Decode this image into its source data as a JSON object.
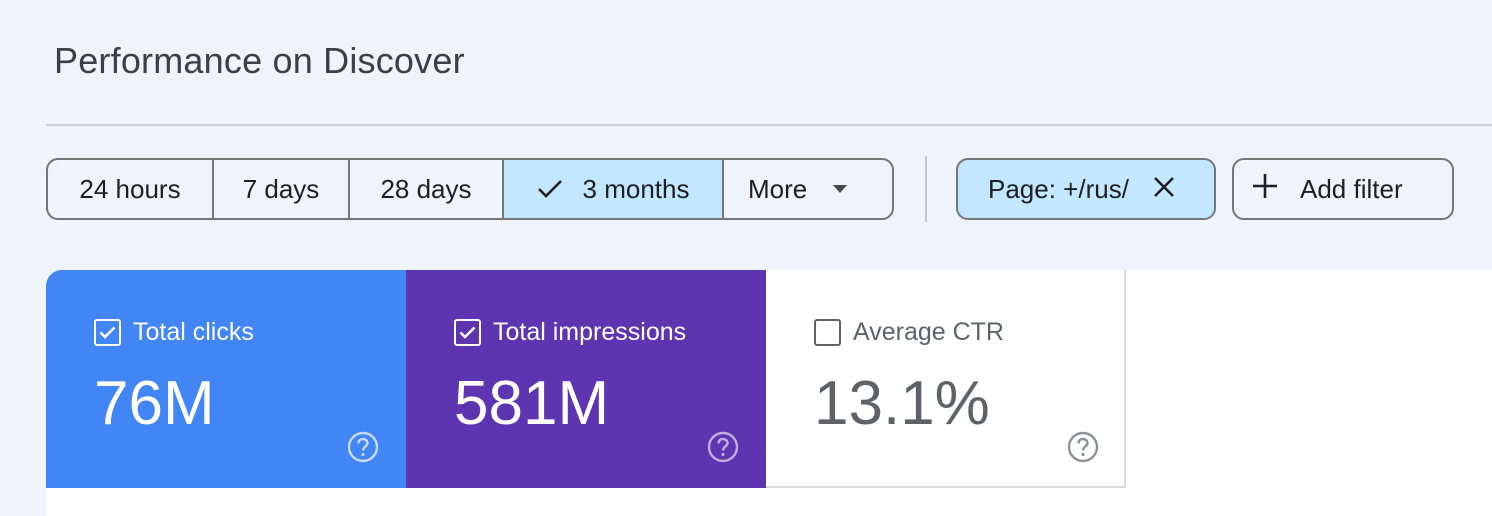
{
  "page": {
    "title": "Performance on Discover"
  },
  "date_range": {
    "options": [
      {
        "label": "24 hours",
        "selected": false
      },
      {
        "label": "7 days",
        "selected": false
      },
      {
        "label": "28 days",
        "selected": false
      },
      {
        "label": "3 months",
        "selected": true
      },
      {
        "label": "More",
        "selected": false
      }
    ]
  },
  "filters": {
    "active": {
      "label": "Page: +/rus/"
    },
    "add_label": "Add filter"
  },
  "metrics": {
    "clicks": {
      "label": "Total clicks",
      "value": "76M",
      "checked": true,
      "color": "#4285f4"
    },
    "impressions": {
      "label": "Total impressions",
      "value": "581M",
      "checked": true,
      "color": "#5e35b1"
    },
    "ctr": {
      "label": "Average CTR",
      "value": "13.1%",
      "checked": false,
      "color": "#ffffff"
    }
  },
  "colors": {
    "accent_selected": "#c2e7ff",
    "background": "#eff3fa"
  }
}
